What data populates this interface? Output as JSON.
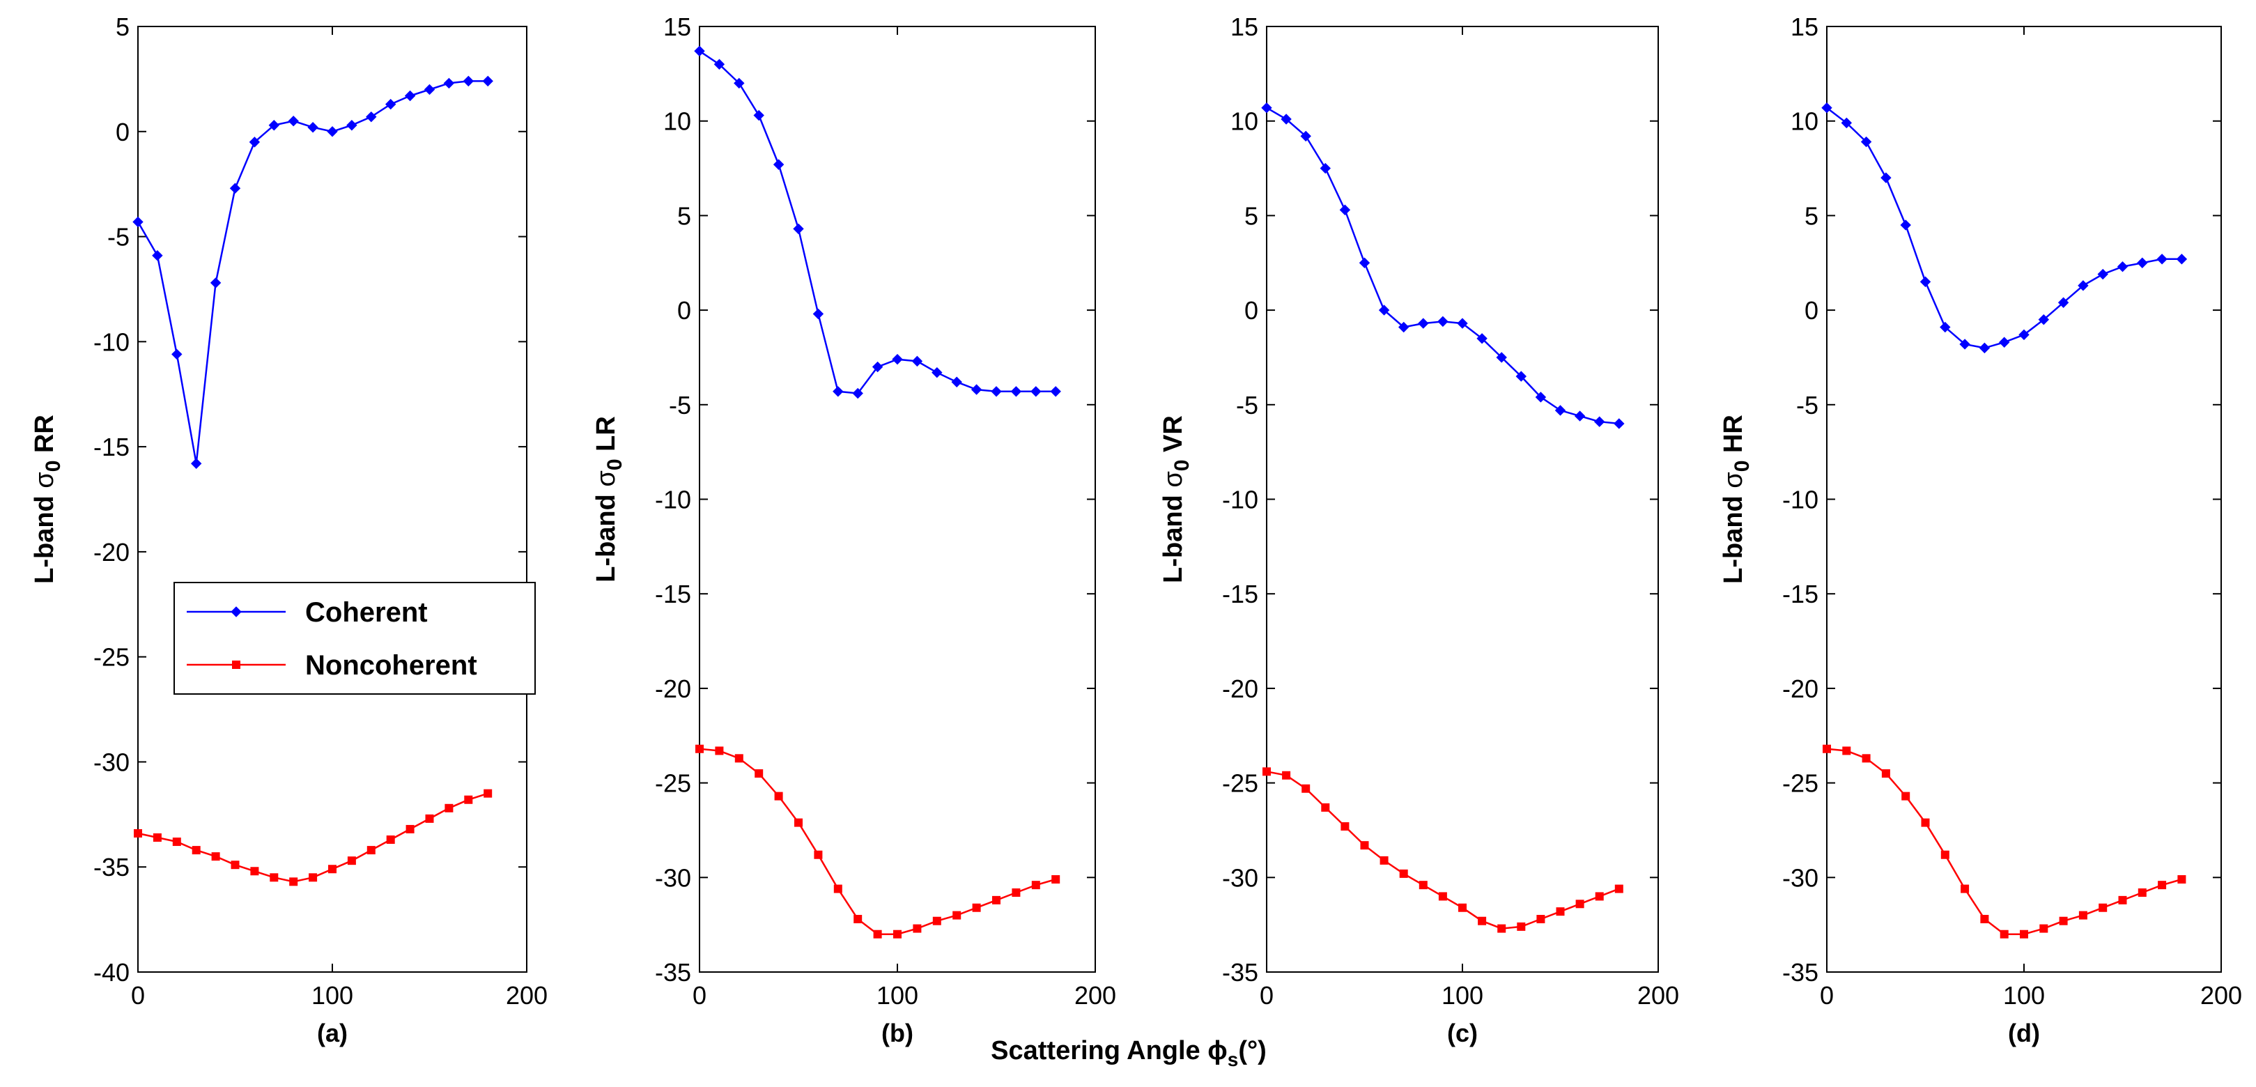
{
  "figure": {
    "xlabel_main": "Scattering Angle ",
    "xlabel_phi": "ϕ",
    "xlabel_sub": "s",
    "xlabel_unit": "(°)"
  },
  "legend": {
    "items": [
      {
        "label": "Coherent",
        "color": "#0000ff",
        "marker": "diamond"
      },
      {
        "label": "Noncoherent",
        "color": "#ff0000",
        "marker": "square"
      }
    ]
  },
  "chart_data": [
    {
      "type": "line",
      "panel_label": "(a)",
      "ylabel_prefix": "L-band ",
      "ylabel_sigma": "σ",
      "ylabel_sub": "0",
      "ylabel_suffix": " RR",
      "xlim": [
        0,
        200
      ],
      "ylim": [
        -40,
        5
      ],
      "xticks": [
        0,
        100,
        200
      ],
      "yticks": [
        -40,
        -35,
        -30,
        -25,
        -20,
        -15,
        -10,
        -5,
        0,
        5
      ],
      "legend_position": "center-left",
      "x": [
        0,
        10,
        20,
        30,
        40,
        50,
        60,
        70,
        80,
        90,
        100,
        110,
        120,
        130,
        140,
        150,
        160,
        170,
        180
      ],
      "series": [
        {
          "name": "Coherent",
          "color": "#0000ff",
          "marker": "diamond",
          "values": [
            -4.3,
            -5.9,
            -10.6,
            -15.8,
            -7.2,
            -2.7,
            -0.5,
            0.3,
            0.5,
            0.2,
            0.0,
            0.3,
            0.7,
            1.3,
            1.7,
            2.0,
            2.3,
            2.4,
            2.4
          ]
        },
        {
          "name": "Noncoherent",
          "color": "#ff0000",
          "marker": "square",
          "values": [
            -33.4,
            -33.6,
            -33.8,
            -34.2,
            -34.5,
            -34.9,
            -35.2,
            -35.5,
            -35.7,
            -35.5,
            -35.1,
            -34.7,
            -34.2,
            -33.7,
            -33.2,
            -32.7,
            -32.2,
            -31.8,
            -31.5
          ]
        }
      ]
    },
    {
      "type": "line",
      "panel_label": "(b)",
      "ylabel_prefix": "L-band ",
      "ylabel_sigma": "σ",
      "ylabel_sub": "0",
      "ylabel_suffix": " LR",
      "xlim": [
        0,
        200
      ],
      "ylim": [
        -35,
        15
      ],
      "xticks": [
        0,
        100,
        200
      ],
      "yticks": [
        -35,
        -30,
        -25,
        -20,
        -15,
        -10,
        -5,
        0,
        5,
        10,
        15
      ],
      "x": [
        0,
        10,
        20,
        30,
        40,
        50,
        60,
        70,
        80,
        90,
        100,
        110,
        120,
        130,
        140,
        150,
        160,
        170,
        180
      ],
      "series": [
        {
          "name": "Coherent",
          "color": "#0000ff",
          "marker": "diamond",
          "values": [
            13.7,
            13.0,
            12.0,
            10.3,
            7.7,
            4.3,
            -0.2,
            -4.3,
            -4.4,
            -3.0,
            -2.6,
            -2.7,
            -3.3,
            -3.8,
            -4.2,
            -4.3,
            -4.3,
            -4.3,
            -4.3
          ]
        },
        {
          "name": "Noncoherent",
          "color": "#ff0000",
          "marker": "square",
          "values": [
            -23.2,
            -23.3,
            -23.7,
            -24.5,
            -25.7,
            -27.1,
            -28.8,
            -30.6,
            -32.2,
            -33.0,
            -33.0,
            -32.7,
            -32.3,
            -32.0,
            -31.6,
            -31.2,
            -30.8,
            -30.4,
            -30.1
          ]
        }
      ]
    },
    {
      "type": "line",
      "panel_label": "(c)",
      "ylabel_prefix": "L-band ",
      "ylabel_sigma": "σ",
      "ylabel_sub": "0",
      "ylabel_suffix": " VR",
      "xlim": [
        0,
        200
      ],
      "ylim": [
        -35,
        15
      ],
      "xticks": [
        0,
        100,
        200
      ],
      "yticks": [
        -35,
        -30,
        -25,
        -20,
        -15,
        -10,
        -5,
        0,
        5,
        10,
        15
      ],
      "x": [
        0,
        10,
        20,
        30,
        40,
        50,
        60,
        70,
        80,
        90,
        100,
        110,
        120,
        130,
        140,
        150,
        160,
        170,
        180
      ],
      "series": [
        {
          "name": "Coherent",
          "color": "#0000ff",
          "marker": "diamond",
          "values": [
            10.7,
            10.1,
            9.2,
            7.5,
            5.3,
            2.5,
            0.0,
            -0.9,
            -0.7,
            -0.6,
            -0.7,
            -1.5,
            -2.5,
            -3.5,
            -4.6,
            -5.3,
            -5.6,
            -5.9,
            -6.0
          ]
        },
        {
          "name": "Noncoherent",
          "color": "#ff0000",
          "marker": "square",
          "values": [
            -24.4,
            -24.6,
            -25.3,
            -26.3,
            -27.3,
            -28.3,
            -29.1,
            -29.8,
            -30.4,
            -31.0,
            -31.6,
            -32.3,
            -32.7,
            -32.6,
            -32.2,
            -31.8,
            -31.4,
            -31.0,
            -30.6
          ]
        }
      ]
    },
    {
      "type": "line",
      "panel_label": "(d)",
      "ylabel_prefix": "L-band ",
      "ylabel_sigma": "σ",
      "ylabel_sub": "0",
      "ylabel_suffix": " HR",
      "xlim": [
        0,
        200
      ],
      "ylim": [
        -35,
        15
      ],
      "xticks": [
        0,
        100,
        200
      ],
      "yticks": [
        -35,
        -30,
        -25,
        -20,
        -15,
        -10,
        -5,
        0,
        5,
        10,
        15
      ],
      "x": [
        0,
        10,
        20,
        30,
        40,
        50,
        60,
        70,
        80,
        90,
        100,
        110,
        120,
        130,
        140,
        150,
        160,
        170,
        180
      ],
      "series": [
        {
          "name": "Coherent",
          "color": "#0000ff",
          "marker": "diamond",
          "values": [
            10.7,
            9.9,
            8.9,
            7.0,
            4.5,
            1.5,
            -0.9,
            -1.8,
            -2.0,
            -1.7,
            -1.3,
            -0.5,
            0.4,
            1.3,
            1.9,
            2.3,
            2.5,
            2.7,
            2.7
          ]
        },
        {
          "name": "Noncoherent",
          "color": "#ff0000",
          "marker": "square",
          "values": [
            -23.2,
            -23.3,
            -23.7,
            -24.5,
            -25.7,
            -27.1,
            -28.8,
            -30.6,
            -32.2,
            -33.0,
            -33.0,
            -32.7,
            -32.3,
            -32.0,
            -31.6,
            -31.2,
            -30.8,
            -30.4,
            -30.1
          ]
        }
      ]
    }
  ]
}
